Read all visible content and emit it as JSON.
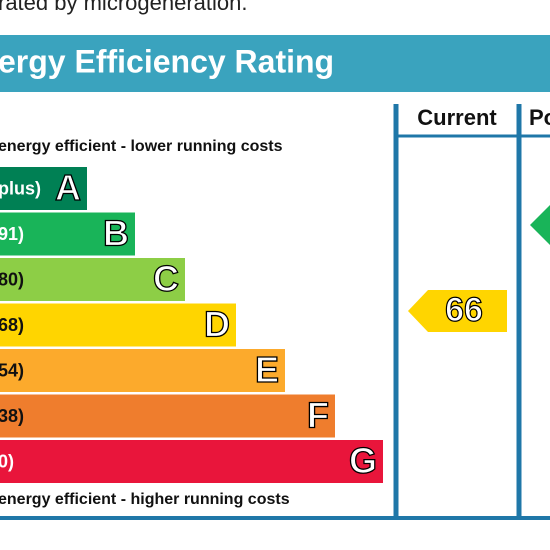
{
  "intro": "rated by microgeneration.",
  "title": "ergy Efficiency Rating",
  "columns": {
    "current": "Current",
    "potential": "Po"
  },
  "top_note": "energy efficient - lower running costs",
  "bottom_note": "energy efficient - higher running costs",
  "bands": [
    {
      "range": "plus)",
      "letter": "A",
      "color": "#008054"
    },
    {
      "range": "91)",
      "letter": "B",
      "color": "#19b459"
    },
    {
      "range": "80)",
      "letter": "C",
      "color": "#8dce46"
    },
    {
      "range": "68)",
      "letter": "D",
      "color": "#ffd500"
    },
    {
      "range": "54)",
      "letter": "E",
      "color": "#fcaa2c"
    },
    {
      "range": "38)",
      "letter": "F",
      "color": "#ef7d2d"
    },
    {
      "range": "0)",
      "letter": "G",
      "color": "#e9153b"
    }
  ],
  "current_rating": "66"
}
